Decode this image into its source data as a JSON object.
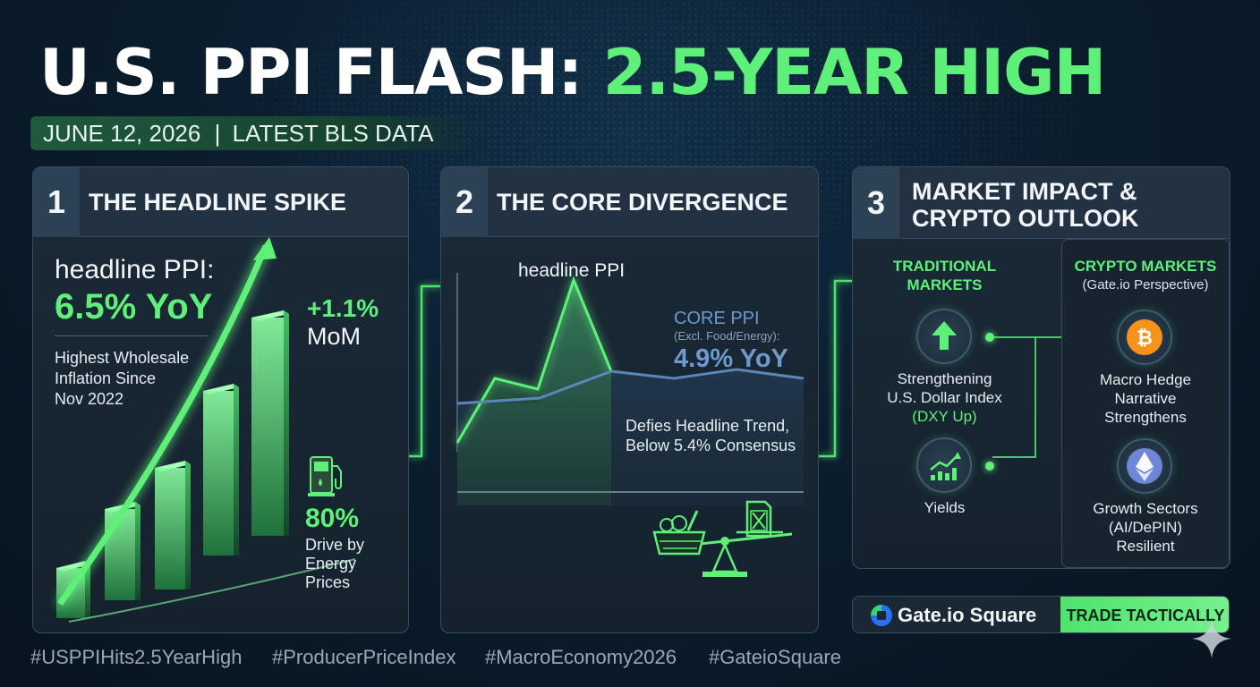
{
  "header": {
    "title_white": "U.S. PPI FLASH:",
    "title_green": "2.5-YEAR HIGH",
    "date": "JUNE 12, 2026",
    "separator": "|",
    "source": "LATEST BLS DATA"
  },
  "panel1": {
    "number": "1",
    "title": "THE HEADLINE SPIKE",
    "metric_label": "headline PPI:",
    "metric_value": "6.5% YoY",
    "description_lines": [
      "Highest Wholesale",
      "Inflation Since",
      "Nov 2022"
    ],
    "mom_value": "+1.1%",
    "mom_label": "MoM",
    "energy_value": "80%",
    "energy_lines": [
      "Drive by",
      "Energy",
      "Prices"
    ],
    "icon": "fuel-pump-icon"
  },
  "panel2": {
    "number": "2",
    "title": "THE CORE DIVERGENCE",
    "headline_label": "headline PPI",
    "core_label": "CORE PPI",
    "core_note": "(Excl. Food/Energy):",
    "core_value": "4.9% YoY",
    "trend_lines": [
      "Defies Headline Trend,",
      "Below 5.4% Consensus"
    ],
    "icons": [
      "grocery-basket-icon",
      "fuel-can-icon",
      "balance-scale-icon"
    ]
  },
  "panel3": {
    "number": "3",
    "title_lines": [
      "MARKET IMPACT &",
      "CRYPTO OUTLOOK"
    ],
    "traditional": {
      "heading_lines": [
        "TRADITIONAL",
        "MARKETS"
      ],
      "items": [
        {
          "icon": "arrow-up-icon",
          "lines": [
            "Strengthening",
            "U.S. Dollar Index"
          ],
          "note": "(DXY Up)"
        },
        {
          "icon": "rising-bar-chart-icon",
          "lines": [
            "Yields"
          ],
          "note": ""
        }
      ]
    },
    "crypto": {
      "heading": "CRYPTO MARKETS",
      "subheading": "(Gate.io Perspective)",
      "items": [
        {
          "icon": "bitcoin-icon",
          "lines": [
            "Macro Hedge",
            "Narrative",
            "Strengthens"
          ]
        },
        {
          "icon": "ethereum-icon",
          "lines": [
            "Growth Sectors",
            "(AI/DePIN)",
            "Resilient"
          ]
        }
      ]
    }
  },
  "cta": {
    "brand": "Gate.io Square",
    "button": "TRADE TACTICALLY"
  },
  "hashtags": [
    "#USPPIHits2.5YearHigh",
    "#ProducerPriceIndex",
    "#MacroEconomy2026",
    "#GateioSquare"
  ],
  "colors": {
    "accent_green": "#5ff07a",
    "core_blue": "#5b86b8",
    "background": "#0b1d2e",
    "bitcoin_orange": "#f7931a"
  }
}
